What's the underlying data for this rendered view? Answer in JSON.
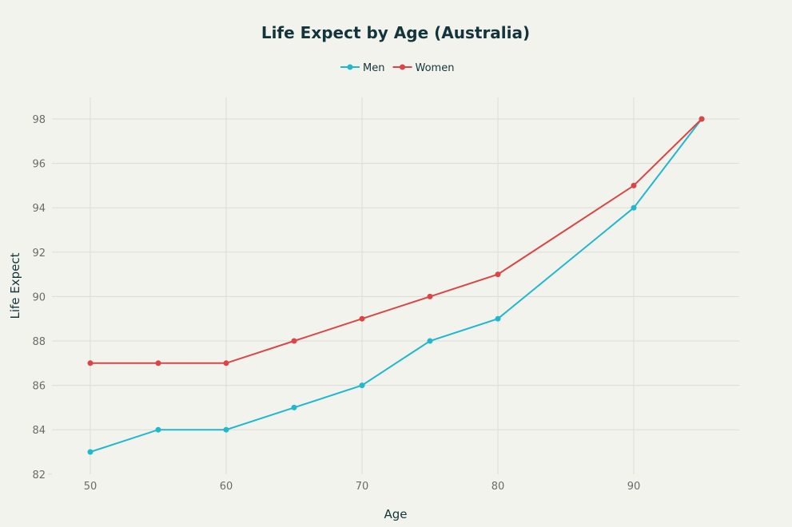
{
  "chart_data": {
    "type": "line",
    "title": "Life Expect by Age (Australia)",
    "xlabel": "Age",
    "ylabel": "Life Expect",
    "x": [
      50,
      55,
      60,
      65,
      70,
      75,
      80,
      90,
      95
    ],
    "series": [
      {
        "name": "Men",
        "color": "#1fb8cd",
        "values": [
          83,
          84,
          84,
          85,
          86,
          88,
          89,
          94,
          98
        ]
      },
      {
        "name": "Women",
        "color": "#db4545",
        "values": [
          87,
          87,
          87,
          88,
          89,
          90,
          91,
          95,
          98
        ]
      }
    ],
    "xticks": [
      50,
      60,
      70,
      80,
      90
    ],
    "yticks": [
      82,
      84,
      86,
      88,
      90,
      92,
      94,
      96,
      98
    ],
    "xlim": [
      47.1,
      97.7
    ],
    "ylim": [
      81.9,
      99
    ],
    "grid": true,
    "legend_position": "top-center"
  }
}
